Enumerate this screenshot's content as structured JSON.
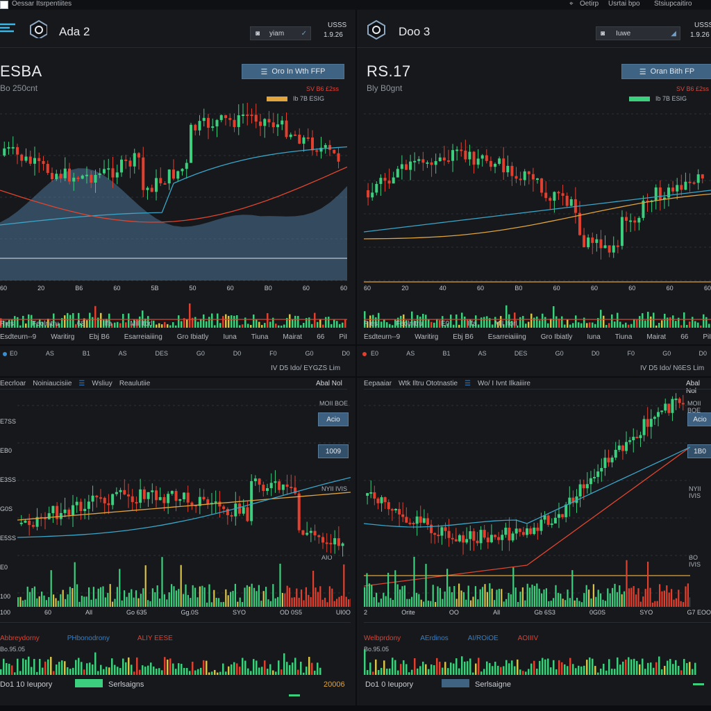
{
  "topbar": {
    "left_text": "Oessar Itsrpentiites",
    "right_text_1": "Oetirp",
    "right_text_2": "Usrtai bpo",
    "right_text_3": "Stsiupcaitiro"
  },
  "left_top": {
    "asset": "Ada 2",
    "toolbar_btn": "yiam",
    "currency": "USSS",
    "currency_value": "1.9.26",
    "price": "ESBA",
    "sub": "Bo 250cnt",
    "open_btn": "Oro In Wth FFP",
    "legend_red": "SV B6 £2ss",
    "legend_item": "Ib 7B ESIG",
    "x_ticks": [
      "60",
      "20",
      "B6",
      "60",
      "5B",
      "50",
      "60",
      "B0",
      "60",
      "60"
    ],
    "status_labels": [
      "Ries",
      "Feolnitru",
      "68",
      "Ilfa",
      "Mil Itorl"
    ],
    "tab_labels": [
      "Esdteurn--9",
      "Waritirg",
      "Ebj B6",
      "Esarreiaiiing",
      "Gro Ibiatly",
      "Iuna",
      "Tiuna",
      "Mairat",
      "66",
      "PiI"
    ],
    "ctrl_labels": [
      "E0",
      "AS",
      "B1",
      "AS",
      "DES",
      "G0",
      "D0",
      "F0",
      "G0",
      "D0"
    ],
    "hint": "IV D5 Ido/ EYGZS Lim"
  },
  "right_top": {
    "asset": "Doo 3",
    "toolbar_btn": "Iuwe",
    "currency": "USSS",
    "currency_value": "1.9.26",
    "price": "RS.17",
    "sub": "Bly B0gnt",
    "open_btn": "Oran Bith FP",
    "legend_red": "SV B6 £2ss",
    "legend_item": "Ib 7B ESIG",
    "x_ticks": [
      "60",
      "20",
      "40",
      "60",
      "B0",
      "60",
      "60",
      "60",
      "60",
      "60"
    ],
    "status_labels": [
      "Ries",
      "Feolnitru",
      "E0",
      "Ilfa",
      "Mil Itorl"
    ],
    "tab_labels": [
      "Esdteurn--9",
      "Waritirg",
      "Ebj B6",
      "Esarreiaiiing",
      "Gro Ibiatly",
      "Iuna",
      "Tiuna",
      "Mairat",
      "66",
      "PiI"
    ],
    "ctrl_labels": [
      "E0",
      "AS",
      "B1",
      "AS",
      "DES",
      "G0",
      "D0",
      "F0",
      "G0",
      "D0"
    ],
    "hint": "IV D5 Ido/ N6ES Lim"
  },
  "left_bottom": {
    "tab1": "Eecrloar",
    "tab2": "Noiniaucisiie",
    "tab3": "Wsliuy",
    "tab4": "Reaulutiie",
    "right_label": "Abal Nol",
    "top_right": "MOII BOE",
    "tag1": "Acio",
    "tag2": "1009",
    "side_label": "NYII IVIS",
    "side_label2": "AIO",
    "y_ticks": [
      "E7SS",
      "EB0",
      "E3SS",
      "G0S",
      "E5SS",
      "E0",
      "100"
    ],
    "x_ticks": [
      "100",
      "60",
      "All",
      "Go 635",
      "Gg.0S",
      "SYO",
      "OD 0S5",
      "UI0O"
    ],
    "foot_red": "Abbreydorny",
    "foot_blue": "PHbonodrony",
    "foot_red2": "ALIY EESE",
    "foot_sub": "Bo.95.05",
    "footer_left": "Do1 10 Ieupory",
    "footer_mid": "Serlsaigns",
    "footer_right": "20006"
  },
  "right_bottom": {
    "tab1": "Eepaaiar",
    "tab2": "Wtk Iltru Ototnastie",
    "tab3": "Wo/ I Ivnt Ilkaiiire",
    "right_label": "Abal Nol",
    "top_right": "MOII BOE",
    "tag1": "Acio",
    "tag2": "1B0",
    "side_label": "NYII IVIS",
    "side_label2": "BO IVIS",
    "x_ticks": [
      "2",
      "Orite",
      "OO",
      "All",
      "Gb 6S3",
      "0G0S",
      "SYO",
      "G7 EOO"
    ],
    "foot_red": "Welbprdony",
    "foot_blue": "AErdinos",
    "foot_blue2": "AI/ROiOE",
    "foot_red2": "AOIIIV",
    "foot_sub": "Bo.95.05",
    "footer_left": "Do1 0 Ieupory",
    "footer_mid": "Serlsaigne"
  },
  "colors": {
    "up": "#3ccf7e",
    "down": "#e2402f",
    "area": "#4f7798",
    "bg": "#16181c",
    "blue_line": "#3aa6c9",
    "orange_line": "#e2a43c",
    "red_line": "#e0452e"
  }
}
